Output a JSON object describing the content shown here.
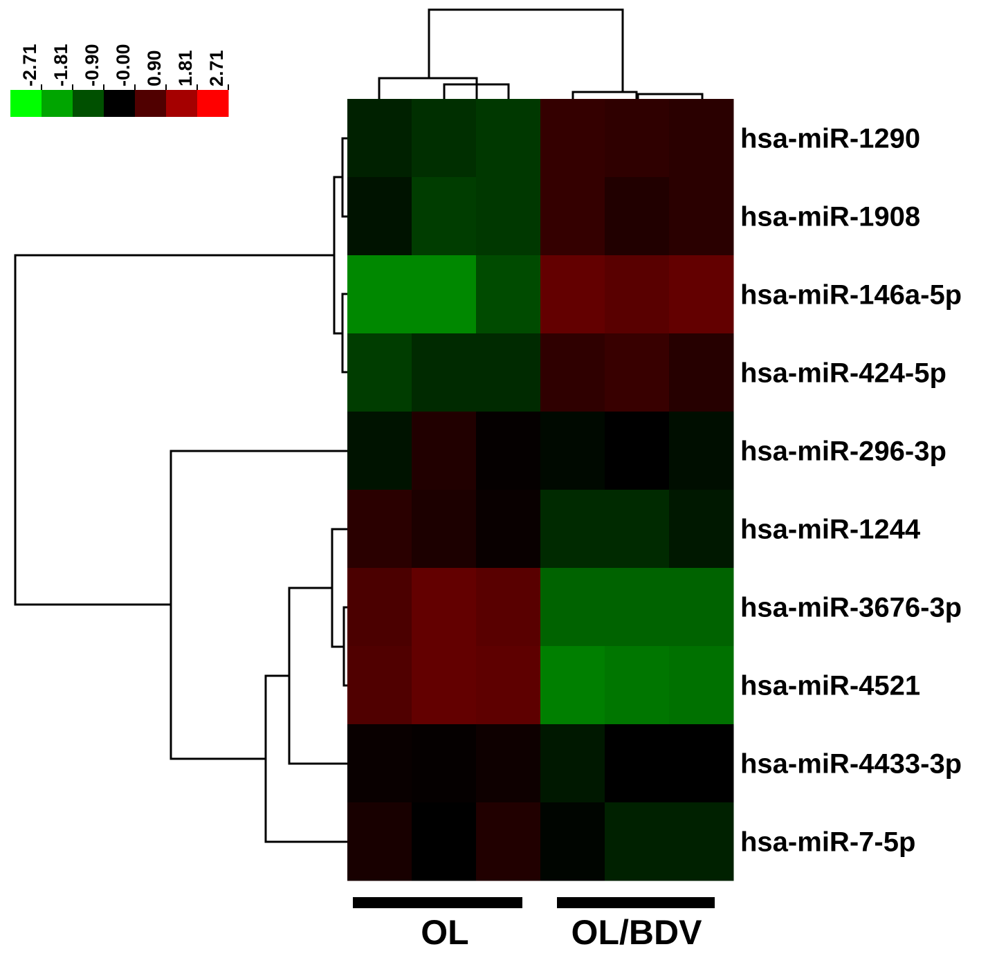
{
  "chart_data": {
    "type": "heatmap",
    "title": "",
    "color_scale": {
      "colors": [
        "#00ff00",
        "#00a500",
        "#005000",
        "#000000",
        "#500000",
        "#a50000",
        "#ff0000"
      ],
      "tick_labels": [
        "-2.71",
        "-1.81",
        "-0.90",
        "-0.00",
        "0.90",
        "1.81",
        "2.71"
      ],
      "min": -2.71,
      "max": 2.71
    },
    "rows": [
      "hsa-miR-1290",
      "hsa-miR-1908",
      "hsa-miR-146a-5p",
      "hsa-miR-424-5p",
      "hsa-miR-296-3p",
      "hsa-miR-1244",
      "hsa-miR-3676-3p",
      "hsa-miR-4521",
      "hsa-miR-4433-3p",
      "hsa-miR-7-5p"
    ],
    "groups": [
      {
        "label": "OL",
        "columns": 3
      },
      {
        "label": "OL/BDV",
        "columns": 3
      }
    ],
    "values": [
      [
        -0.35,
        -0.5,
        -0.6,
        0.55,
        0.5,
        0.45
      ],
      [
        -0.2,
        -0.65,
        -0.6,
        0.55,
        0.35,
        0.45
      ],
      [
        -1.45,
        -1.45,
        -0.8,
        1.05,
        0.95,
        1.05
      ],
      [
        -0.65,
        -0.45,
        -0.45,
        0.5,
        0.6,
        0.4
      ],
      [
        -0.2,
        0.35,
        0.05,
        -0.1,
        0.0,
        -0.15
      ],
      [
        0.45,
        0.3,
        0.1,
        -0.45,
        -0.45,
        -0.25
      ],
      [
        0.8,
        1.05,
        0.95,
        -1.05,
        -1.05,
        -1.05
      ],
      [
        0.85,
        1.05,
        1.0,
        -1.35,
        -1.25,
        -1.2
      ],
      [
        0.1,
        0.05,
        0.15,
        -0.25,
        0.0,
        0.0
      ],
      [
        0.25,
        0.0,
        0.35,
        -0.05,
        -0.35,
        -0.35
      ]
    ]
  }
}
